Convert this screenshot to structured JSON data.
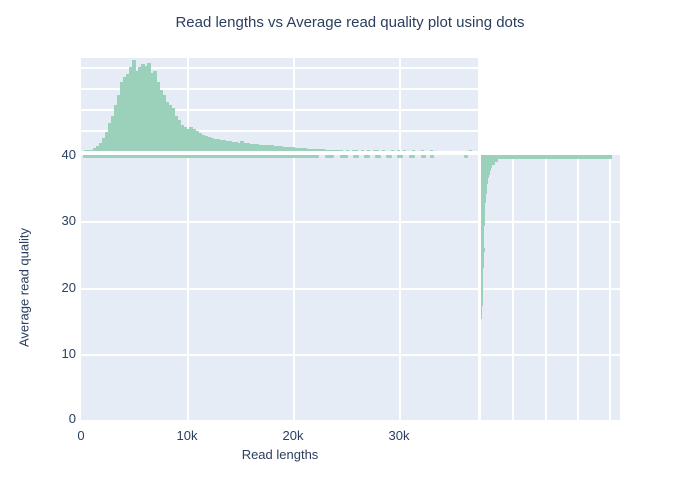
{
  "figure": {
    "title": "Read lengths vs Average read quality plot using dots",
    "colors": {
      "marker_green": "#9bd1bb",
      "panel_background": "#e5ecf6",
      "gridline": "#ffffff",
      "text": "#2a3f5f"
    }
  },
  "chart_data": {
    "type": "scatter",
    "subtype": "scatter-with-marginal-histograms",
    "title": "Read lengths vs Average read quality plot using dots",
    "xlabel": "Read lengths",
    "ylabel": "Average read quality",
    "xlim": [
      0,
      37600
    ],
    "ylim": [
      0,
      40.5
    ],
    "x_tick_labels": [
      "0",
      "10k",
      "20k",
      "30k"
    ],
    "x_tick_values": [
      0,
      10000,
      20000,
      30000
    ],
    "y_tick_labels": [
      "40",
      "30",
      "20",
      "10",
      "0"
    ],
    "y_tick_values": [
      40,
      30,
      20,
      10,
      0
    ],
    "grid": true,
    "legend": false,
    "dots": {
      "quality": 40,
      "note": "scatter points form a dense horizontal band at quality ~40; solid from 0 to ~22.5k reads, sparse dashes out to ~37k",
      "segments_x_frac": [
        [
          0.005,
          0.6
        ],
        [
          0.615,
          0.638
        ],
        [
          0.652,
          0.672
        ],
        [
          0.684,
          0.7
        ],
        [
          0.712,
          0.728
        ],
        [
          0.74,
          0.756
        ],
        [
          0.768,
          0.784
        ],
        [
          0.796,
          0.812
        ],
        [
          0.826,
          0.842
        ],
        [
          0.856,
          0.868
        ],
        [
          0.88,
          0.888
        ],
        [
          0.965,
          0.975
        ]
      ]
    },
    "top_histogram": {
      "axis": "read length, 0 to ~37.6k",
      "peak_read_length": 4800,
      "heights_norm": [
        0,
        0.005,
        0.01,
        0.015,
        0.03,
        0.05,
        0.09,
        0.14,
        0.2,
        0.3,
        0.38,
        0.5,
        0.6,
        0.74,
        0.8,
        0.83,
        0.9,
        0.98,
        0.86,
        0.9,
        0.94,
        0.91,
        0.95,
        0.84,
        0.86,
        0.74,
        0.66,
        0.6,
        0.53,
        0.49,
        0.46,
        0.38,
        0.33,
        0.28,
        0.26,
        0.24,
        0.26,
        0.24,
        0.21,
        0.19,
        0.17,
        0.16,
        0.15,
        0.14,
        0.13,
        0.125,
        0.12,
        0.115,
        0.11,
        0.105,
        0.1,
        0.095,
        0.09,
        0.11,
        0.09,
        0.085,
        0.08,
        0.075,
        0.075,
        0.07,
        0.07,
        0.065,
        0.06,
        0.06,
        0.055,
        0.05,
        0.05,
        0.045,
        0.04,
        0.04,
        0.038,
        0.035,
        0.032,
        0.03,
        0.028,
        0.026,
        0.025,
        0.024,
        0.022,
        0.02,
        0.018,
        0.015,
        0.013,
        0.012,
        0.012,
        0.011,
        0.01,
        0,
        0.01,
        0,
        0.01,
        0.01,
        0,
        0.01,
        0,
        0.01,
        0,
        0.01,
        0.01,
        0,
        0.01,
        0,
        0,
        0.01,
        0,
        0.01,
        0,
        0.01,
        0,
        0,
        0.01,
        0,
        0,
        0.01,
        0,
        0,
        0.01,
        0,
        0,
        0,
        0,
        0,
        0,
        0,
        0,
        0,
        0,
        0,
        0,
        0.012,
        0,
        0
      ]
    },
    "right_histogram": {
      "axis": "average read quality, bins from 40 (top) down to 15, step 0.5",
      "quality_top": 40,
      "quality_bottom": 15,
      "widths_norm": [
        0.94,
        0.125,
        0.1,
        0.08,
        0.07,
        0.062,
        0.055,
        0.05,
        0.047,
        0.044,
        0.042,
        0.04,
        0.038,
        0.036,
        0.034,
        0.032,
        0.031,
        0.03,
        0.029,
        0.028,
        0.027,
        0.026,
        0.025,
        0.024,
        0.023,
        0.022,
        0.022,
        0.024,
        0.021,
        0.027,
        0.021,
        0.02,
        0.019,
        0.018,
        0.018,
        0.017,
        0.016,
        0.016,
        0.015,
        0.015,
        0.014,
        0.014,
        0.013,
        0.013,
        0.012,
        0.011,
        0.011,
        0.01,
        0.009,
        0.008,
        0.007
      ]
    }
  }
}
